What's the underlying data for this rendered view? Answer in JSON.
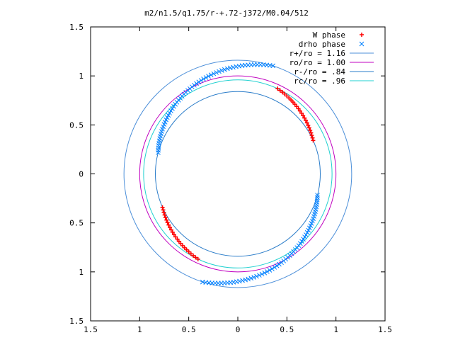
{
  "chart_data": {
    "type": "scatter",
    "title": "m2/n1.5/q1.75/r-+.72-j372/M0.04/512",
    "xlim": [
      -1.5,
      1.5
    ],
    "ylim": [
      -1.5,
      1.5
    ],
    "x_tick_values": [
      -1.5,
      -1,
      -0.5,
      0,
      0.5,
      1,
      1.5
    ],
    "x_tick_labels": [
      "1.5",
      "1",
      "0.5",
      "0",
      "0.5",
      "1",
      "1.5"
    ],
    "y_tick_values": [
      1.5,
      1,
      0.5,
      0,
      -0.5,
      -1,
      -1.5
    ],
    "y_tick_labels": [
      "1.5",
      "1",
      "0.5",
      "0",
      "0.5",
      "1",
      "1.5"
    ],
    "legend_position": "top-right",
    "grid": false,
    "legend": [
      {
        "label": "W phase",
        "marker": "+",
        "color": "#ff0000"
      },
      {
        "label": "drho phase",
        "marker": "x",
        "color": "#0080ff"
      },
      {
        "label": "r+/ro = 1.16",
        "marker": "line",
        "color": "#4c8fd9"
      },
      {
        "label": "ro/ro = 1.00",
        "marker": "line",
        "color": "#c000c0"
      },
      {
        "label": "r-/ro = .84",
        "marker": "line",
        "color": "#2a7cc9"
      },
      {
        "label": "rc/ro = .96",
        "marker": "line",
        "color": "#20d0d0"
      }
    ],
    "circles": [
      {
        "name": "r+/ro = 1.16",
        "r": 1.16,
        "color": "#4c8fd9"
      },
      {
        "name": "ro/ro = 1.00",
        "r": 1.0,
        "color": "#c000c0"
      },
      {
        "name": "r-/ro = .84",
        "r": 0.84,
        "color": "#2a7cc9"
      },
      {
        "name": "rc/ro = .96",
        "r": 0.96,
        "color": "#20d0d0"
      }
    ],
    "series": [
      {
        "name": "W phase",
        "marker": "+",
        "color": "#ff0000",
        "arms": [
          {
            "r_start": 0.84,
            "r_end": 0.96,
            "angle_start_deg": 24,
            "angle_end_deg": 65,
            "points": 24
          },
          {
            "r_start": 0.84,
            "r_end": 0.96,
            "angle_start_deg": 204,
            "angle_end_deg": 245,
            "points": 24
          }
        ]
      },
      {
        "name": "drho phase",
        "marker": "x",
        "color": "#0080ff",
        "arms": [
          {
            "r_start": 0.84,
            "r_end": 1.16,
            "angle_start_deg": 165,
            "angle_end_deg": 72,
            "points": 60
          },
          {
            "r_start": 0.84,
            "r_end": 1.16,
            "angle_start_deg": -15,
            "angle_end_deg": -108,
            "points": 60
          }
        ]
      }
    ]
  }
}
